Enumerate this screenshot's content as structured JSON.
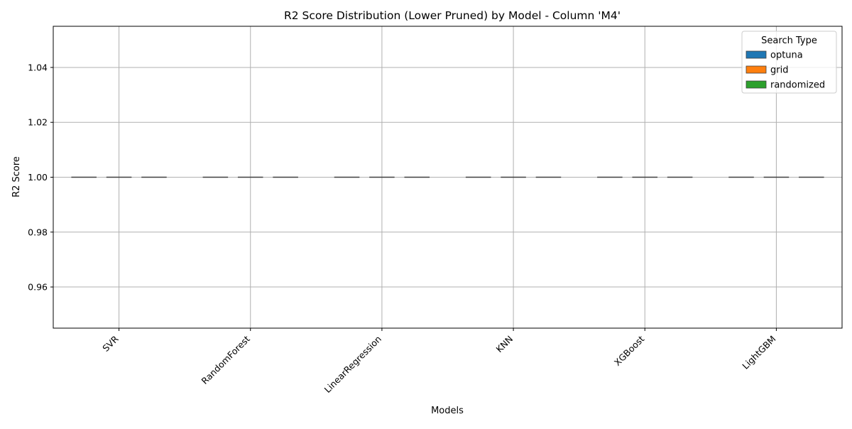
{
  "chart_data": {
    "type": "box",
    "title": "R2 Score Distribution (Lower Pruned) by Model - Column 'M4'",
    "xlabel": "Models",
    "ylabel": "R2 Score",
    "categories": [
      "SVR",
      "RandomForest",
      "LinearRegression",
      "KNN",
      "XGBoost",
      "LightGBM"
    ],
    "ylim": [
      0.945,
      1.055
    ],
    "yticks": [
      0.96,
      0.98,
      1.0,
      1.02,
      1.04
    ],
    "ytick_labels": [
      "0.96",
      "0.98",
      "1.00",
      "1.02",
      "1.04"
    ],
    "grid": true,
    "legend": {
      "title": "Search Type",
      "placement": "top-right"
    },
    "series": [
      {
        "name": "optuna",
        "color": "#1f77b4",
        "values": [
          1.0,
          1.0,
          1.0,
          1.0,
          1.0,
          1.0
        ]
      },
      {
        "name": "grid",
        "color": "#ff7f0e",
        "values": [
          1.0,
          1.0,
          1.0,
          1.0,
          1.0,
          1.0
        ]
      },
      {
        "name": "randomized",
        "color": "#2ca02c",
        "values": [
          1.0,
          1.0,
          1.0,
          1.0,
          1.0,
          1.0
        ]
      }
    ]
  }
}
